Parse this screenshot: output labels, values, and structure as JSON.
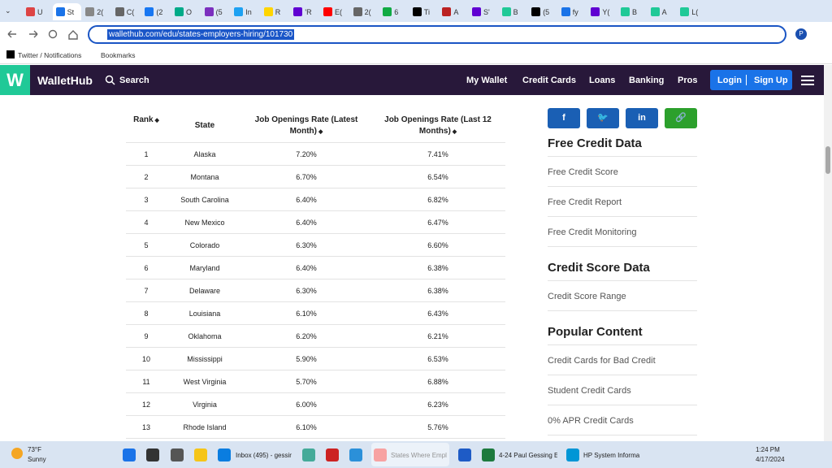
{
  "tabs": [
    "U",
    "St",
    "2(",
    "C(",
    "(2",
    "O",
    "(5",
    "In",
    "R",
    "'R",
    "E(",
    "2(",
    "6",
    "Ti",
    "A",
    "S'",
    "B",
    "(5",
    "fy",
    "Y(",
    "B",
    "A",
    "L("
  ],
  "address": "wallethub.com/edu/states-employers-hiring/101730",
  "bookmarks": [
    "Twitter / Notifications",
    "Bookmarks"
  ],
  "nav": {
    "logo_letter": "W",
    "logo": "WalletHub",
    "search": "Search",
    "links": [
      "My Wallet",
      "Credit Cards",
      "Loans",
      "Banking",
      "Pros"
    ],
    "login": "Login",
    "signup": "Sign Up"
  },
  "table": {
    "headers": [
      "Rank",
      "State",
      "Job Openings Rate (Latest Month)",
      "Job Openings Rate (Last 12 Months)"
    ],
    "rows": [
      [
        1,
        "Alaska",
        "7.20%",
        "7.41%"
      ],
      [
        2,
        "Montana",
        "6.70%",
        "6.54%"
      ],
      [
        3,
        "South Carolina",
        "6.40%",
        "6.82%"
      ],
      [
        4,
        "New Mexico",
        "6.40%",
        "6.47%"
      ],
      [
        5,
        "Colorado",
        "6.30%",
        "6.60%"
      ],
      [
        6,
        "Maryland",
        "6.40%",
        "6.38%"
      ],
      [
        7,
        "Delaware",
        "6.30%",
        "6.38%"
      ],
      [
        8,
        "Louisiana",
        "6.10%",
        "6.43%"
      ],
      [
        9,
        "Oklahoma",
        "6.20%",
        "6.21%"
      ],
      [
        10,
        "Mississippi",
        "5.90%",
        "6.53%"
      ],
      [
        11,
        "West Virginia",
        "5.70%",
        "6.88%"
      ],
      [
        12,
        "Virginia",
        "6.00%",
        "6.23%"
      ],
      [
        13,
        "Rhode Island",
        "6.10%",
        "5.76%"
      ]
    ]
  },
  "sidebar": [
    {
      "title": "Free Credit Data",
      "links": [
        "Free Credit Score",
        "Free Credit Report",
        "Free Credit Monitoring"
      ]
    },
    {
      "title": "Credit Score Data",
      "links": [
        "Credit Score Range"
      ]
    },
    {
      "title": "Popular Content",
      "links": [
        "Credit Cards for Bad Credit",
        "Student Credit Cards",
        "0% APR Credit Cards"
      ]
    }
  ],
  "taskbar": {
    "weather_temp": "73°F",
    "weather_text": "Sunny",
    "apps": [
      "Inbox (495) - gessir",
      "States Where Empl",
      "4-24 Paul Gessing E",
      "HP System Informa"
    ],
    "time": "1:24 PM",
    "date": "4/17/2024"
  }
}
